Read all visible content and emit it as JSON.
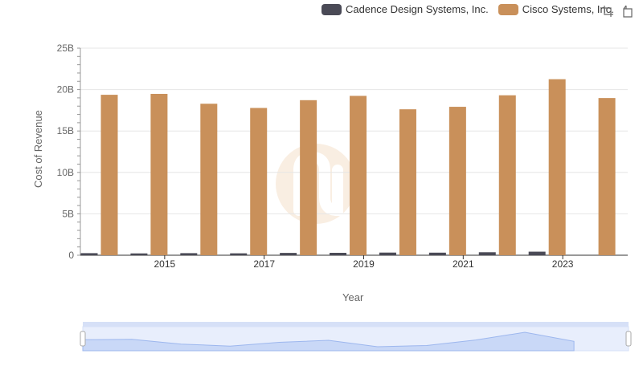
{
  "legend": {
    "items": [
      {
        "label": "Cadence Design Systems, Inc.",
        "color": "#4a4a56"
      },
      {
        "label": "Cisco Systems, Inc.",
        "color": "#c9905a"
      }
    ]
  },
  "toolbox": {
    "icons": [
      "zoom-icon",
      "zoom-reset-icon"
    ]
  },
  "chart_data": {
    "type": "bar",
    "xlabel": "Year",
    "ylabel": "Cost of Revenue",
    "ylim": [
      0,
      25
    ],
    "y_unit": "B",
    "yticks": [
      "0",
      "5B",
      "10B",
      "15B",
      "20B",
      "25B"
    ],
    "categories": [
      "2014",
      "2015",
      "2016",
      "2017",
      "2018",
      "2019",
      "2020",
      "2021",
      "2022",
      "2023",
      "2024"
    ],
    "x_tick_labels": [
      "2015",
      "2017",
      "2019",
      "2021",
      "2023"
    ],
    "series": [
      {
        "name": "Cadence Design Systems, Inc.",
        "color": "#4a4a56",
        "values": [
          0.25,
          0.22,
          0.25,
          0.23,
          0.28,
          0.29,
          0.32,
          0.31,
          0.36,
          0.43,
          null
        ]
      },
      {
        "name": "Cisco Systems, Inc.",
        "color": "#c9905a",
        "values": [
          19.37,
          19.48,
          18.29,
          17.78,
          18.72,
          19.24,
          17.62,
          17.92,
          19.31,
          21.25,
          18.98
        ]
      }
    ],
    "grid": true,
    "legend_position": "top-right"
  }
}
